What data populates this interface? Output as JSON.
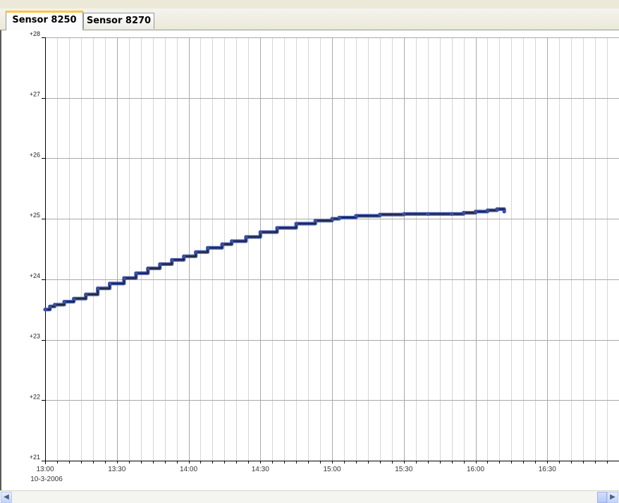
{
  "tabs": [
    {
      "label": "Sensor 8250",
      "active": true
    },
    {
      "label": "Sensor 8270",
      "active": false
    }
  ],
  "chart_data": {
    "type": "line",
    "title": "",
    "xlabel": "",
    "ylabel": "",
    "date_label": "10-3-2006",
    "x_ticks": [
      "13:00",
      "13:30",
      "14:00",
      "14:30",
      "15:00",
      "15:30",
      "16:00",
      "16:30"
    ],
    "y_ticks": [
      "+21",
      "+22",
      "+23",
      "+24",
      "+25",
      "+26",
      "+27",
      "+28"
    ],
    "xlim": [
      "13:00",
      "17:00"
    ],
    "ylim": [
      21,
      28
    ],
    "grid": true,
    "series_color": "#3b4fa0",
    "series": [
      {
        "x": [
          "13:00",
          "13:02",
          "13:04",
          "13:08",
          "13:12",
          "13:17",
          "13:22",
          "13:27",
          "13:33",
          "13:38",
          "13:43",
          "13:48",
          "13:53",
          "13:58",
          "14:03",
          "14:08",
          "14:14",
          "14:18",
          "14:24",
          "14:30",
          "14:37",
          "14:45",
          "14:53",
          "15:00",
          "15:03",
          "15:10",
          "15:20",
          "15:30",
          "15:40",
          "15:50",
          "15:55",
          "16:00",
          "16:05",
          "16:09",
          "16:12"
        ],
        "values": [
          23.5,
          23.55,
          23.58,
          23.63,
          23.68,
          23.75,
          23.85,
          23.93,
          24.02,
          24.1,
          24.18,
          24.25,
          24.32,
          24.38,
          24.45,
          24.52,
          24.58,
          24.63,
          24.7,
          24.78,
          24.85,
          24.92,
          24.97,
          25.0,
          25.02,
          25.05,
          25.07,
          25.08,
          25.08,
          25.08,
          25.1,
          25.12,
          25.14,
          25.16,
          25.12
        ]
      }
    ]
  }
}
